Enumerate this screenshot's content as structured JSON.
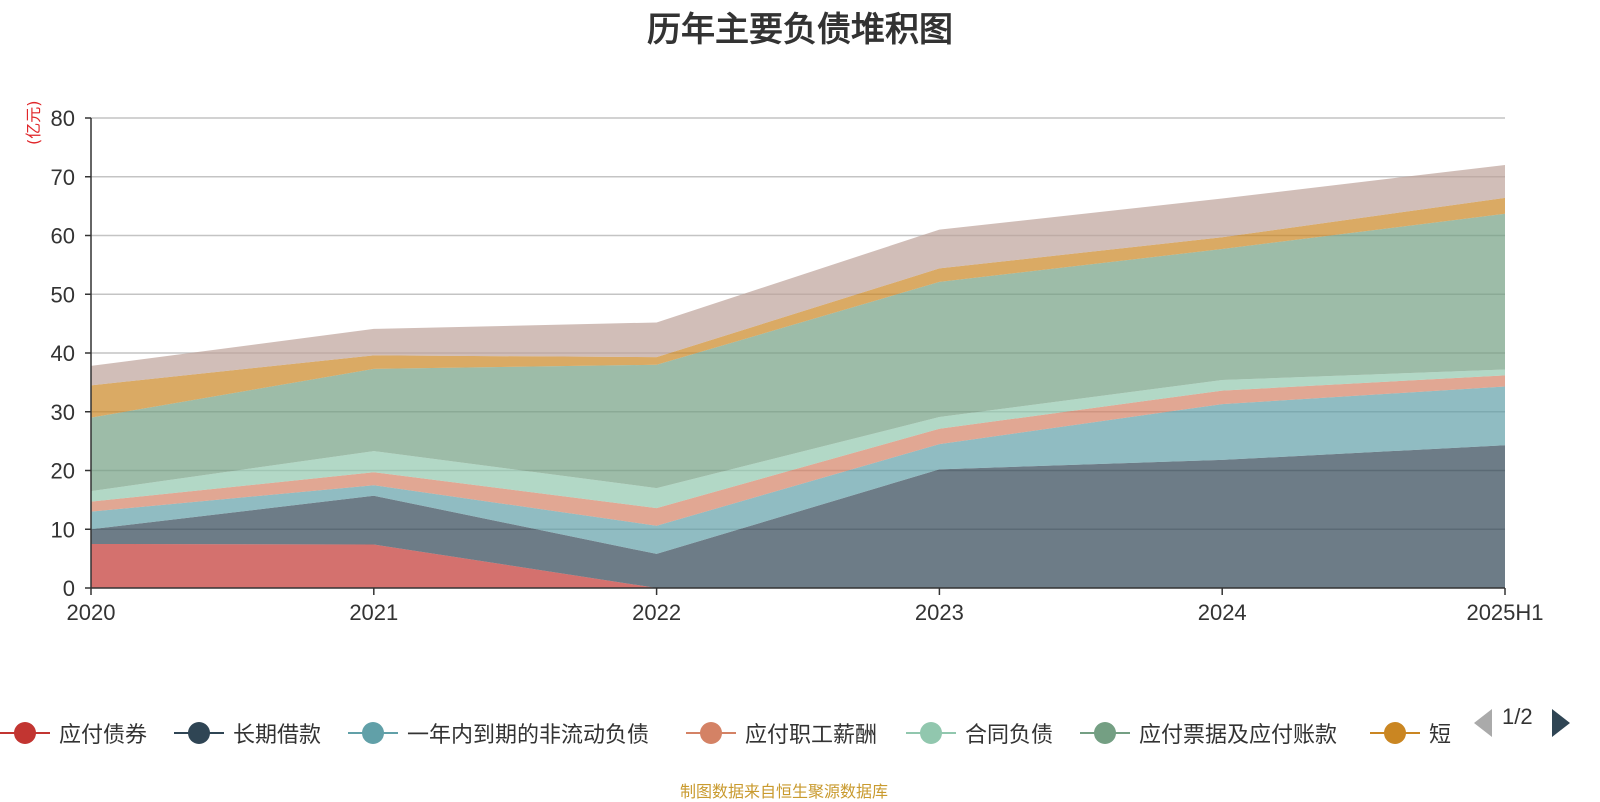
{
  "chart_data": {
    "type": "area",
    "stacked": true,
    "title": "历年主要负债堆积图",
    "unit_label": "(亿元)",
    "x": [
      "2020",
      "2021",
      "2022",
      "2023",
      "2024",
      "2025H1"
    ],
    "ylim": [
      0,
      80
    ],
    "yticks": [
      0,
      10,
      20,
      30,
      40,
      50,
      60,
      70,
      80
    ],
    "grid": true,
    "series": [
      {
        "name": "应付债券",
        "color": "#c23531",
        "values": [
          7.5,
          7.4,
          0,
          0,
          0,
          0
        ]
      },
      {
        "name": "长期借款",
        "color": "#2f4554",
        "values": [
          2.5,
          8.3,
          5.8,
          20.2,
          21.8,
          24.3
        ]
      },
      {
        "name": "一年内到期的非流动负债",
        "color": "#61a0a8",
        "values": [
          3.0,
          1.8,
          4.8,
          4.3,
          9.5,
          10.0
        ]
      },
      {
        "name": "应付职工薪酬",
        "color": "#d48265",
        "values": [
          1.7,
          2.2,
          3.0,
          2.6,
          2.3,
          1.9
        ]
      },
      {
        "name": "合同负债",
        "color": "#91c7ae",
        "values": [
          1.8,
          3.6,
          3.4,
          2.0,
          1.8,
          1.0
        ]
      },
      {
        "name": "应付票据及应付账款",
        "color": "#749f83",
        "values": [
          12.5,
          14.0,
          21.0,
          23.0,
          22.3,
          26.5
        ]
      },
      {
        "name": "短",
        "color": "#ca8622",
        "values": [
          5.5,
          2.3,
          1.3,
          2.3,
          2.0,
          2.7
        ]
      },
      {
        "name": "",
        "color": "#bda29a",
        "values": [
          3.3,
          4.5,
          5.9,
          6.6,
          6.6,
          5.6
        ]
      }
    ],
    "legend_position": "bottom"
  },
  "legend": {
    "items": [
      "应付债券",
      "长期借款",
      "一年内到期的非流动负债",
      "应付职工薪酬",
      "合同负债",
      "应付票据及应付账款",
      "短"
    ],
    "pager": "1/2"
  },
  "source_note": "制图数据来自恒生聚源数据库"
}
